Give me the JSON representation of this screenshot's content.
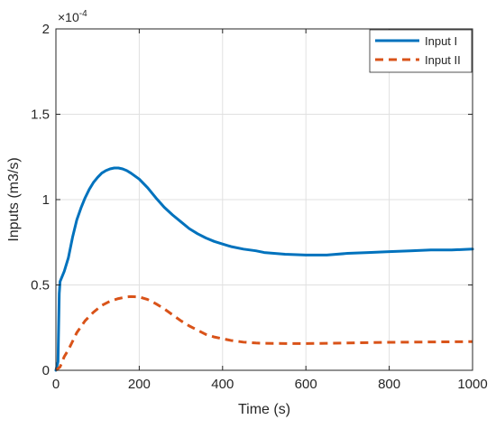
{
  "chart_data": {
    "type": "line",
    "title": "",
    "xlabel": "Time (s)",
    "ylabel": "Inputs (m3/s)",
    "xlim": [
      0,
      1000
    ],
    "ylim": [
      0,
      2
    ],
    "y_exponent_label": "×10",
    "y_exponent_power": "-4",
    "xticks": [
      0,
      200,
      400,
      600,
      800,
      1000
    ],
    "xtick_labels": [
      "0",
      "200",
      "400",
      "600",
      "800",
      "1000"
    ],
    "yticks": [
      0,
      0.5,
      1,
      1.5,
      2
    ],
    "ytick_labels": [
      "0",
      "0.5",
      "1",
      "1.5",
      "2"
    ],
    "grid": true,
    "legend_position": "top-right",
    "series": [
      {
        "name": "Input I",
        "color": "#0072BD",
        "style": "solid",
        "x": [
          0,
          5,
          8,
          10,
          15,
          20,
          30,
          40,
          50,
          60,
          70,
          80,
          90,
          100,
          110,
          120,
          130,
          140,
          150,
          160,
          170,
          180,
          200,
          220,
          240,
          260,
          280,
          300,
          320,
          340,
          360,
          380,
          400,
          420,
          450,
          480,
          500,
          550,
          600,
          650,
          700,
          750,
          800,
          850,
          900,
          950,
          1000
        ],
        "y": [
          0,
          0.05,
          0.45,
          0.52,
          0.55,
          0.58,
          0.66,
          0.78,
          0.88,
          0.95,
          1.01,
          1.06,
          1.1,
          1.13,
          1.155,
          1.17,
          1.18,
          1.185,
          1.185,
          1.18,
          1.17,
          1.155,
          1.12,
          1.07,
          1.01,
          0.955,
          0.91,
          0.87,
          0.83,
          0.8,
          0.775,
          0.755,
          0.74,
          0.725,
          0.71,
          0.7,
          0.69,
          0.68,
          0.675,
          0.675,
          0.685,
          0.69,
          0.695,
          0.7,
          0.705,
          0.705,
          0.71
        ]
      },
      {
        "name": "Input II",
        "color": "#D95319",
        "style": "dashed",
        "x": [
          0,
          10,
          20,
          30,
          50,
          70,
          90,
          110,
          130,
          150,
          170,
          180,
          200,
          220,
          240,
          260,
          280,
          300,
          320,
          340,
          360,
          380,
          400,
          420,
          450,
          480,
          500,
          550,
          600,
          650,
          700,
          750,
          800,
          850,
          900,
          950,
          1000
        ],
        "y": [
          0,
          0.02,
          0.08,
          0.12,
          0.22,
          0.29,
          0.34,
          0.38,
          0.405,
          0.42,
          0.43,
          0.432,
          0.43,
          0.415,
          0.39,
          0.36,
          0.325,
          0.29,
          0.26,
          0.235,
          0.21,
          0.195,
          0.185,
          0.175,
          0.165,
          0.16,
          0.158,
          0.157,
          0.157,
          0.158,
          0.16,
          0.162,
          0.164,
          0.165,
          0.166,
          0.167,
          0.168
        ]
      }
    ]
  }
}
